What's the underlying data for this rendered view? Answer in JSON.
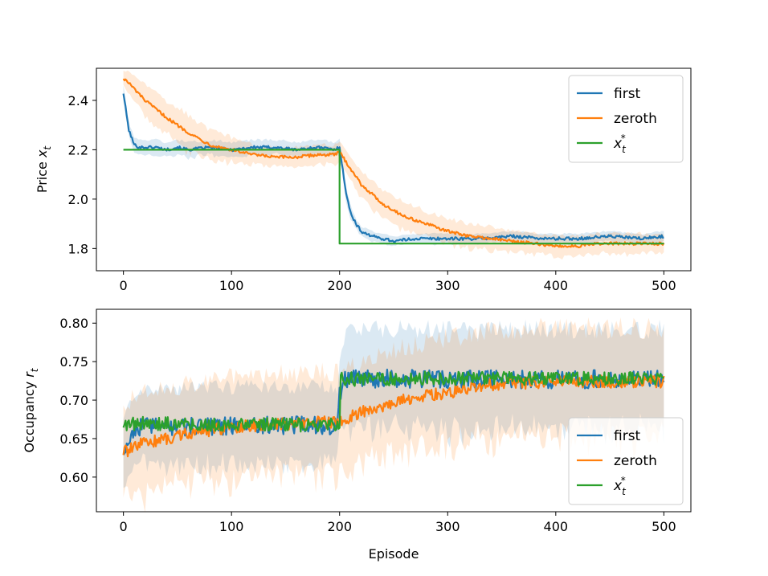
{
  "colors": {
    "first": "#1f77b4",
    "zeroth": "#ff7f0e",
    "optimal": "#2ca02c"
  },
  "chart_data": [
    {
      "type": "line",
      "id": "price",
      "title": "",
      "xlabel": "",
      "ylabel": "Price x_t",
      "ylabel_parts": {
        "main": "Price ",
        "var": "x",
        "sub": "t"
      },
      "xlim": [
        -25,
        525
      ],
      "ylim": [
        1.71,
        2.53
      ],
      "xticks": [
        0,
        100,
        200,
        300,
        400,
        500
      ],
      "xtick_labels": [
        "0",
        "100",
        "200",
        "300",
        "400",
        "500"
      ],
      "yticks": [
        1.8,
        2.0,
        2.2,
        2.4
      ],
      "ytick_labels": [
        "1.8",
        "2.0",
        "2.2",
        "2.4"
      ],
      "legend_position": "upper-right",
      "legend": [
        {
          "key": "first",
          "label": "first",
          "var": "",
          "sub": "",
          "sup": ""
        },
        {
          "key": "zeroth",
          "label": "zeroth",
          "var": "",
          "sub": "",
          "sup": ""
        },
        {
          "key": "optimal",
          "label": "x_t^*",
          "var": "x",
          "sub": "t",
          "sup": "*"
        }
      ],
      "series": [
        {
          "name": "first",
          "color_key": "first",
          "x": [
            0,
            5,
            10,
            15,
            20,
            30,
            40,
            50,
            60,
            80,
            100,
            120,
            140,
            160,
            180,
            195,
            200,
            203,
            206,
            210,
            215,
            220,
            230,
            240,
            250,
            270,
            300,
            330,
            360,
            390,
            420,
            450,
            480,
            500
          ],
          "y": [
            2.43,
            2.28,
            2.22,
            2.21,
            2.21,
            2.21,
            2.2,
            2.21,
            2.2,
            2.21,
            2.2,
            2.21,
            2.21,
            2.2,
            2.21,
            2.2,
            2.21,
            2.12,
            2.02,
            1.95,
            1.9,
            1.87,
            1.85,
            1.84,
            1.83,
            1.84,
            1.84,
            1.84,
            1.85,
            1.84,
            1.84,
            1.85,
            1.84,
            1.85
          ],
          "band": [
            0.03,
            0.03,
            0.03,
            0.03,
            0.03,
            0.03,
            0.03,
            0.03,
            0.03,
            0.03,
            0.03,
            0.03,
            0.03,
            0.03,
            0.03,
            0.03,
            0.03,
            0.03,
            0.03,
            0.03,
            0.02,
            0.02,
            0.02,
            0.02,
            0.02,
            0.02,
            0.02,
            0.02,
            0.02,
            0.02,
            0.02,
            0.02,
            0.02,
            0.02
          ]
        },
        {
          "name": "zeroth",
          "color_key": "zeroth",
          "x": [
            0,
            5,
            20,
            40,
            60,
            80,
            100,
            120,
            140,
            160,
            180,
            195,
            200,
            220,
            240,
            260,
            280,
            300,
            320,
            340,
            360,
            380,
            400,
            420,
            440,
            460,
            480,
            500
          ],
          "y": [
            2.49,
            2.47,
            2.4,
            2.33,
            2.27,
            2.22,
            2.2,
            2.18,
            2.17,
            2.17,
            2.18,
            2.18,
            2.19,
            2.06,
            1.98,
            1.93,
            1.9,
            1.87,
            1.85,
            1.84,
            1.83,
            1.82,
            1.81,
            1.81,
            1.82,
            1.82,
            1.82,
            1.82
          ],
          "band": [
            0.03,
            0.05,
            0.06,
            0.07,
            0.07,
            0.06,
            0.05,
            0.04,
            0.04,
            0.04,
            0.04,
            0.04,
            0.04,
            0.06,
            0.06,
            0.06,
            0.05,
            0.05,
            0.05,
            0.05,
            0.04,
            0.04,
            0.04,
            0.04,
            0.04,
            0.04,
            0.04,
            0.04
          ]
        },
        {
          "name": "optimal",
          "color_key": "optimal",
          "x": [
            0,
            200,
            200,
            500
          ],
          "y": [
            2.2,
            2.2,
            1.82,
            1.82
          ],
          "band": null
        }
      ]
    },
    {
      "type": "line",
      "id": "occupancy",
      "title": "",
      "xlabel": "Episode",
      "ylabel": "Occupancy r_t",
      "ylabel_parts": {
        "main": "Occupancy ",
        "var": "r",
        "sub": "t"
      },
      "xlim": [
        -25,
        525
      ],
      "ylim": [
        0.555,
        0.818
      ],
      "xticks": [
        0,
        100,
        200,
        300,
        400,
        500
      ],
      "xtick_labels": [
        "0",
        "100",
        "200",
        "300",
        "400",
        "500"
      ],
      "yticks": [
        0.6,
        0.65,
        0.7,
        0.75,
        0.8
      ],
      "ytick_labels": [
        "0.60",
        "0.65",
        "0.70",
        "0.75",
        "0.80"
      ],
      "legend_position": "lower-right",
      "legend": [
        {
          "key": "first",
          "label": "first",
          "var": "",
          "sub": "",
          "sup": ""
        },
        {
          "key": "zeroth",
          "label": "zeroth",
          "var": "",
          "sub": "",
          "sup": ""
        },
        {
          "key": "optimal",
          "label": "x_t^*",
          "var": "x",
          "sub": "t",
          "sup": "*"
        }
      ],
      "series": [
        {
          "name": "first",
          "color_key": "first",
          "x": [
            0,
            10,
            20,
            40,
            60,
            80,
            100,
            120,
            140,
            160,
            180,
            198,
            200,
            205,
            210,
            230,
            260,
            300,
            340,
            380,
            420,
            460,
            500
          ],
          "y": [
            0.634,
            0.662,
            0.668,
            0.665,
            0.666,
            0.666,
            0.667,
            0.668,
            0.668,
            0.667,
            0.667,
            0.667,
            0.705,
            0.726,
            0.728,
            0.728,
            0.728,
            0.727,
            0.727,
            0.727,
            0.727,
            0.727,
            0.727
          ],
          "band": [
            0.04,
            0.045,
            0.045,
            0.048,
            0.05,
            0.05,
            0.05,
            0.05,
            0.05,
            0.05,
            0.05,
            0.05,
            0.05,
            0.06,
            0.065,
            0.065,
            0.065,
            0.065,
            0.065,
            0.065,
            0.065,
            0.065,
            0.065
          ],
          "noise": 0.012
        },
        {
          "name": "zeroth",
          "color_key": "zeroth",
          "x": [
            0,
            5,
            20,
            40,
            60,
            80,
            100,
            120,
            140,
            160,
            180,
            198,
            200,
            220,
            240,
            260,
            280,
            300,
            320,
            340,
            360,
            400,
            440,
            480,
            500
          ],
          "y": [
            0.632,
            0.635,
            0.645,
            0.65,
            0.657,
            0.661,
            0.665,
            0.667,
            0.668,
            0.67,
            0.671,
            0.672,
            0.67,
            0.685,
            0.693,
            0.7,
            0.705,
            0.71,
            0.715,
            0.72,
            0.722,
            0.724,
            0.724,
            0.724,
            0.724
          ],
          "band": [
            0.06,
            0.065,
            0.065,
            0.065,
            0.065,
            0.065,
            0.065,
            0.065,
            0.065,
            0.065,
            0.065,
            0.065,
            0.065,
            0.065,
            0.065,
            0.068,
            0.07,
            0.07,
            0.07,
            0.07,
            0.07,
            0.07,
            0.07,
            0.07,
            0.07
          ],
          "noise": 0.008
        },
        {
          "name": "optimal",
          "color_key": "optimal",
          "x": [
            0,
            20,
            60,
            100,
            140,
            180,
            200,
            201,
            240,
            300,
            400,
            500
          ],
          "y": [
            0.668,
            0.67,
            0.669,
            0.668,
            0.668,
            0.668,
            0.668,
            0.727,
            0.728,
            0.728,
            0.728,
            0.728
          ],
          "band": null,
          "noise": 0.009
        }
      ]
    }
  ]
}
